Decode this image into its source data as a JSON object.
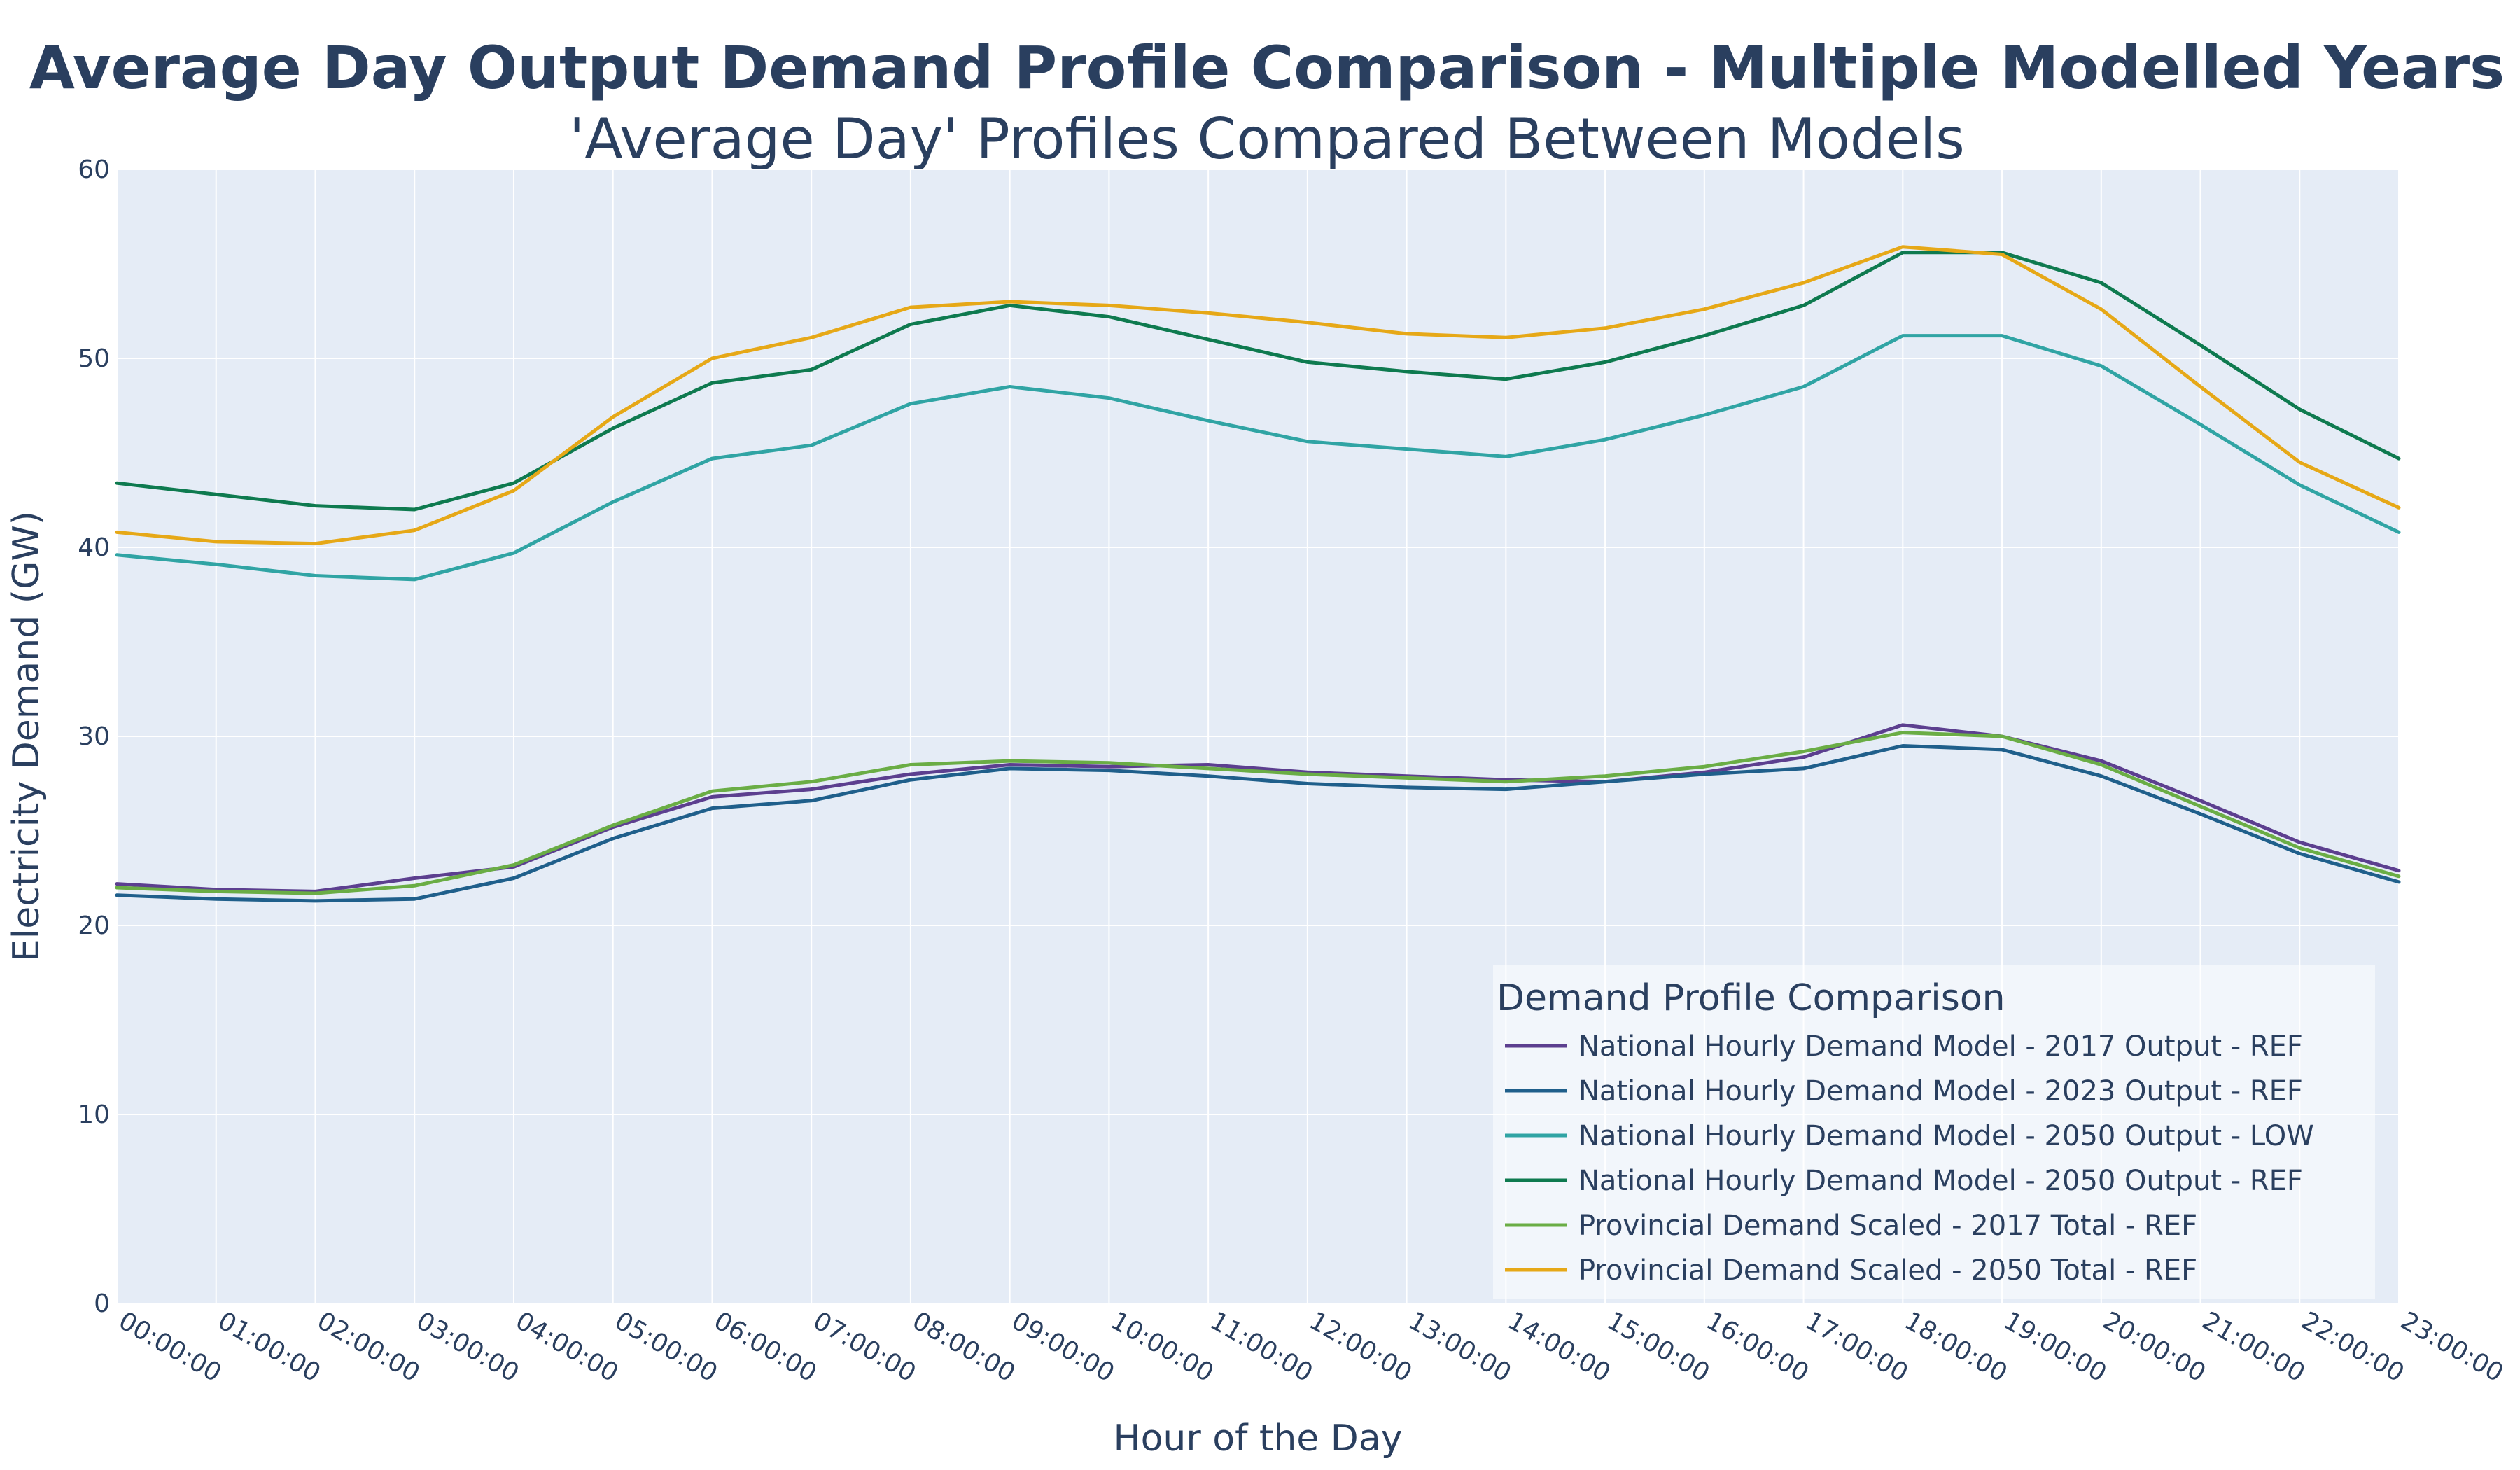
{
  "chart_data": {
    "type": "line",
    "title": "Average Day Output Demand Profile Comparison - Multiple Modelled Years",
    "subtitle": "'Average Day' Profiles Compared Between Models",
    "xlabel": "Hour of the Day",
    "ylabel": "Electricity Demand (GW)",
    "ylim": [
      0,
      60
    ],
    "yticks": [
      0,
      10,
      20,
      30,
      40,
      50,
      60
    ],
    "grid": true,
    "legend_placement": "bottom-right",
    "legend_title": "Demand Profile Comparison",
    "background": "#e5ecf6",
    "x": [
      "00:00:00",
      "01:00:00",
      "02:00:00",
      "03:00:00",
      "04:00:00",
      "05:00:00",
      "06:00:00",
      "07:00:00",
      "08:00:00",
      "09:00:00",
      "10:00:00",
      "11:00:00",
      "12:00:00",
      "13:00:00",
      "14:00:00",
      "15:00:00",
      "16:00:00",
      "17:00:00",
      "18:00:00",
      "19:00:00",
      "20:00:00",
      "21:00:00",
      "22:00:00",
      "23:00:00"
    ],
    "series": [
      {
        "name": "National Hourly Demand Model - 2017 Output - REF",
        "color": "#5c3f8f",
        "values": [
          22.2,
          21.9,
          21.8,
          22.5,
          23.1,
          25.2,
          26.8,
          27.2,
          28.0,
          28.5,
          28.4,
          28.5,
          28.1,
          27.9,
          27.7,
          27.6,
          28.1,
          28.9,
          30.6,
          30.0,
          28.7,
          26.6,
          24.4,
          22.9
        ]
      },
      {
        "name": "National Hourly Demand Model - 2023 Output - REF",
        "color": "#1f5f8b",
        "values": [
          21.6,
          21.4,
          21.3,
          21.4,
          22.5,
          24.6,
          26.2,
          26.6,
          27.7,
          28.3,
          28.2,
          27.9,
          27.5,
          27.3,
          27.2,
          27.6,
          28.0,
          28.3,
          29.5,
          29.3,
          27.9,
          25.9,
          23.8,
          22.3
        ]
      },
      {
        "name": "National Hourly Demand Model - 2050 Output - LOW",
        "color": "#30a4a4",
        "values": [
          39.6,
          39.1,
          38.5,
          38.3,
          39.7,
          42.4,
          44.7,
          45.4,
          47.6,
          48.5,
          47.9,
          46.7,
          45.6,
          45.2,
          44.8,
          45.7,
          47.0,
          48.5,
          51.2,
          51.2,
          49.6,
          46.5,
          43.3,
          40.8
        ]
      },
      {
        "name": "National Hourly Demand Model - 2050 Output - REF",
        "color": "#0e7a4f",
        "values": [
          43.4,
          42.8,
          42.2,
          42.0,
          43.4,
          46.3,
          48.7,
          49.4,
          51.8,
          52.8,
          52.2,
          51.0,
          49.8,
          49.3,
          48.9,
          49.8,
          51.2,
          52.8,
          55.6,
          55.6,
          54.0,
          50.7,
          47.3,
          44.7
        ]
      },
      {
        "name": "Provincial Demand Scaled - 2017 Total - REF",
        "color": "#6aad45",
        "values": [
          22.0,
          21.8,
          21.7,
          22.1,
          23.2,
          25.3,
          27.1,
          27.6,
          28.5,
          28.7,
          28.6,
          28.3,
          28.0,
          27.8,
          27.6,
          27.9,
          28.4,
          29.2,
          30.2,
          30.0,
          28.5,
          26.3,
          24.1,
          22.6
        ]
      },
      {
        "name": "Provincial Demand Scaled - 2050 Total - REF",
        "color": "#e6a817",
        "values": [
          40.8,
          40.3,
          40.2,
          40.9,
          43.0,
          46.9,
          50.0,
          51.1,
          52.7,
          53.0,
          52.8,
          52.4,
          51.9,
          51.3,
          51.1,
          51.6,
          52.6,
          54.0,
          55.9,
          55.5,
          52.6,
          48.5,
          44.5,
          42.1
        ]
      }
    ]
  }
}
